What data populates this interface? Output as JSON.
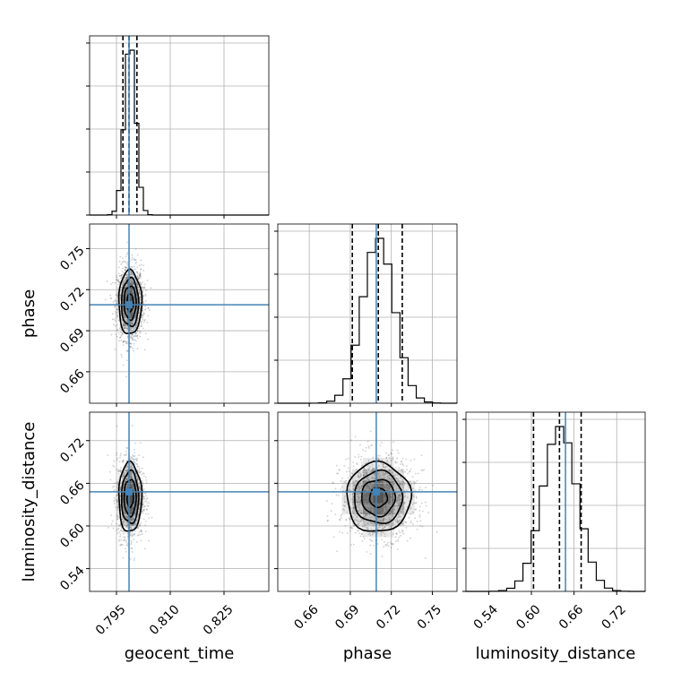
{
  "chart_data": {
    "type": "corner",
    "parameters": [
      "geocent_time",
      "phase",
      "luminosity_distance"
    ],
    "truths": {
      "geocent_time": 0.7985,
      "phase": 0.709,
      "luminosity_distance": 0.648
    },
    "axis_ranges": {
      "geocent_time": [
        0.7875,
        0.8375
      ],
      "phase": [
        0.637,
        0.768
      ],
      "luminosity_distance": [
        0.508,
        0.76
      ]
    },
    "ticks": {
      "geocent_time": [
        0.795,
        0.81,
        0.825
      ],
      "phase": [
        0.66,
        0.69,
        0.72,
        0.75
      ],
      "luminosity_distance": [
        0.54,
        0.6,
        0.66,
        0.72
      ]
    },
    "tick_labels": {
      "geocent_time": [
        "0.795",
        "0.810",
        "0.825"
      ],
      "phase": [
        "0.66",
        "0.69",
        "0.72",
        "0.75"
      ],
      "luminosity_distance": [
        "0.54",
        "0.60",
        "0.66",
        "0.72"
      ]
    },
    "quantiles": {
      "geocent_time": [
        0.7968,
        0.7985,
        0.8007
      ],
      "phase": [
        0.6915,
        0.7105,
        0.728
      ],
      "luminosity_distance": [
        0.603,
        0.6395,
        0.67
      ]
    },
    "stats": {
      "geocent_time": {
        "mean": 0.7988,
        "sd": 0.0016
      },
      "phase": {
        "mean": 0.7105,
        "sd": 0.0117
      },
      "luminosity_distance": {
        "mean": 0.64,
        "sd": 0.0245
      }
    },
    "grid": true,
    "truth_color": "#4682b4",
    "contour_color": "#000000"
  }
}
